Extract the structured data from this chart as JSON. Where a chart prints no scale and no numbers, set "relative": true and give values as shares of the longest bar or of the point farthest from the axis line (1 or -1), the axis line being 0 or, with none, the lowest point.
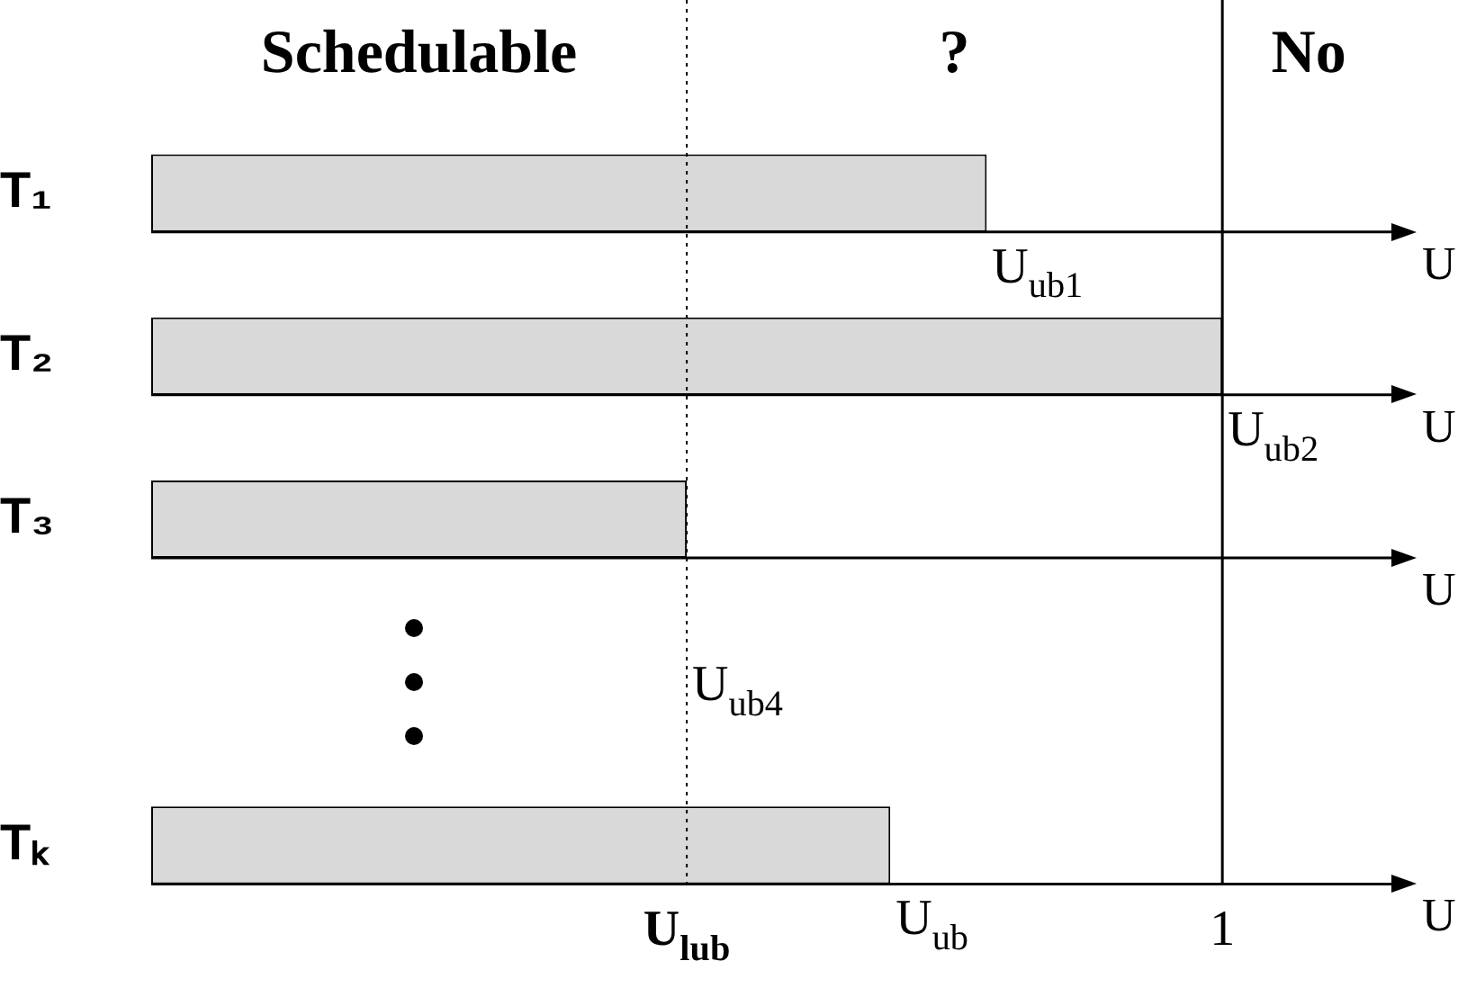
{
  "chart_data": {
    "type": "bar",
    "orientation": "horizontal",
    "relative": true,
    "categories": [
      "T₁",
      "T₂",
      "T₃",
      null,
      "Tₖ"
    ],
    "values": [
      0.78,
      1,
      0.5,
      null,
      0.69
    ],
    "color": "#d9d9d9",
    "xlabel": "U",
    "ref_lines": [
      {
        "axis": "x",
        "value": 0.5,
        "label": "U$_{lub}$",
        "line_style": "dotted",
        "color": "#000000"
      },
      {
        "axis": "x",
        "value": 1,
        "label": "1",
        "line_style": "solid",
        "color": "#000000"
      }
    ],
    "annotations": [
      "Schedulable",
      "?",
      "No",
      {
        "text": "U$_{ub1}$",
        "x": 0.78,
        "y": "T₁"
      },
      {
        "text": "U$_{ub2}$",
        "x": 1,
        "y": "T₂"
      },
      {
        "text": "U$_{ub4}$",
        "x": 0.5
      },
      {
        "text": "U$_{ub}$",
        "x": 0.69,
        "y": "Tₖ"
      }
    ]
  }
}
